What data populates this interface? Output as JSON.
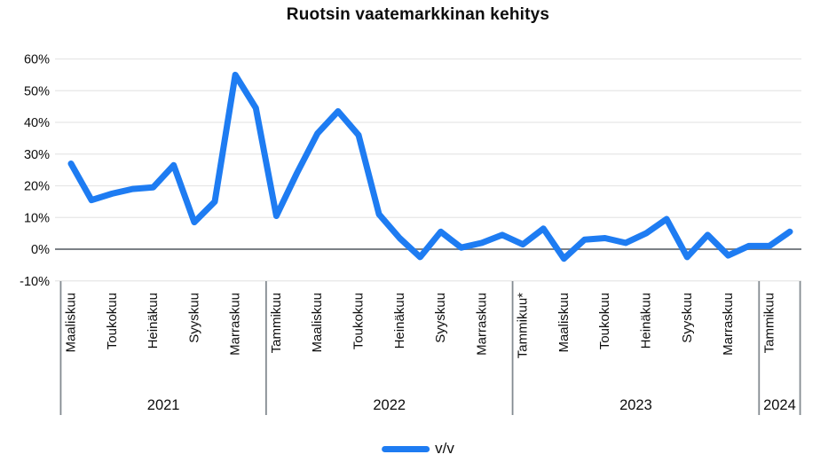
{
  "title": "Ruotsin vaatemarkkinan kehitys",
  "legend": {
    "label": "v/v"
  },
  "colors": {
    "line": "#1e7cf2",
    "grid": "#e6e6e6",
    "zero_line": "#7b8086",
    "divider": "#848b91",
    "text": "#0d0d0d"
  },
  "chart_data": {
    "type": "line",
    "title": "Ruotsin vaatemarkkinan kehitys",
    "unit": "percent year-over-year",
    "ylim": [
      -10,
      60
    ],
    "grid": "horizontal",
    "ytick_values": [
      60,
      50,
      40,
      30,
      20,
      10,
      0,
      -10
    ],
    "ytick_labels": [
      "60%",
      "50%",
      "40%",
      "30%",
      "20%",
      "10%",
      "0%",
      "-10%"
    ],
    "x_tick_interval_months": 2,
    "x_tick_labels": [
      "Maaliskuu",
      "Toukokuu",
      "Heinäkuu",
      "Syyskuu",
      "Marraskuu",
      "Tammikuu",
      "Maaliskuu",
      "Toukokuu",
      "Heinäkuu",
      "Syyskuu",
      "Marraskuu",
      "Tammikuu*",
      "Maaliskuu",
      "Toukokuu",
      "Heinäkuu",
      "Syyskuu",
      "Marraskuu",
      "Tammikuu"
    ],
    "year_sections": [
      {
        "label": "2021",
        "month_count": 10
      },
      {
        "label": "2022",
        "month_count": 12
      },
      {
        "label": "2023",
        "month_count": 12
      },
      {
        "label": "2024",
        "month_count": 2
      }
    ],
    "series": [
      {
        "name": "v/v",
        "first_point": "Maaliskuu 2021",
        "values": [
          27,
          15.5,
          17.5,
          19,
          19.5,
          26.5,
          8.5,
          15,
          55,
          44.5,
          10.5,
          24,
          36.5,
          43.5,
          36,
          11,
          3.5,
          -2.5,
          5.5,
          0.5,
          2,
          4.5,
          1.5,
          6.5,
          -3,
          3,
          3.5,
          2,
          5,
          9.5,
          -2.5,
          4.5,
          -2,
          1,
          1,
          5.5
        ]
      }
    ],
    "legend_position": "bottom"
  }
}
